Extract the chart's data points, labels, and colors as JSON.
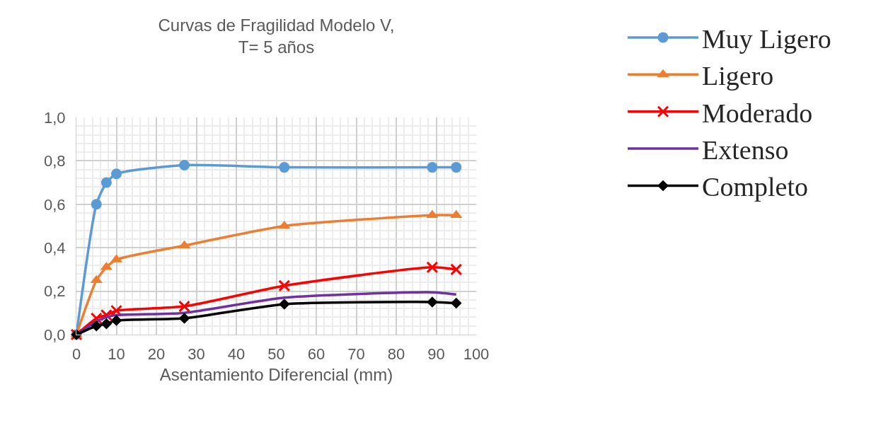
{
  "chart_data": {
    "type": "line",
    "title": "Curvas de Fragilidad Modelo V,\nT= 5 años",
    "xlabel": "Asentamiento Diferencial (mm)",
    "x": [
      0,
      5,
      7.5,
      10,
      27,
      52,
      89,
      95
    ],
    "series": [
      {
        "name": "Muy Ligero",
        "color": "#5b9bd5",
        "marker": "circle",
        "values": [
          0,
          0.6,
          0.7,
          0.74,
          0.78,
          0.77,
          0.77,
          0.77
        ]
      },
      {
        "name": "Ligero",
        "color": "#ed7d31",
        "marker": "triangle",
        "values": [
          0,
          0.25,
          0.31,
          0.345,
          0.41,
          0.5,
          0.55,
          0.55
        ]
      },
      {
        "name": "Moderado",
        "color": "#ff0000",
        "marker": "cross",
        "values": [
          0,
          0.075,
          0.09,
          0.11,
          0.13,
          0.225,
          0.31,
          0.3
        ]
      },
      {
        "name": "Extenso",
        "color": "#7030a0",
        "marker": "none",
        "values": [
          0,
          0.06,
          0.08,
          0.09,
          0.1,
          0.17,
          0.195,
          0.185
        ]
      },
      {
        "name": "Completo",
        "color": "#000000",
        "marker": "diamond",
        "values": [
          0,
          0.04,
          0.05,
          0.065,
          0.075,
          0.14,
          0.15,
          0.145
        ]
      }
    ],
    "xlim": [
      0,
      100
    ],
    "xticks": [
      0,
      10,
      20,
      30,
      40,
      50,
      60,
      70,
      80,
      90,
      100
    ],
    "ylim": [
      0,
      1
    ],
    "yticks": [
      {
        "value": 0,
        "label": "0,0"
      },
      {
        "value": 0.2,
        "label": "0,2"
      },
      {
        "value": 0.4,
        "label": "0,4"
      },
      {
        "value": 0.6,
        "label": "0,6"
      },
      {
        "value": 0.8,
        "label": "0,8"
      },
      {
        "value": 1,
        "label": "1,0"
      }
    ],
    "grid": true,
    "legend": "right",
    "line_style": "solid"
  }
}
